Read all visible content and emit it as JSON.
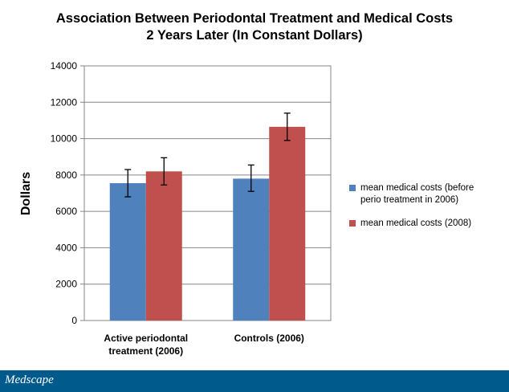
{
  "chart_data": {
    "type": "bar",
    "title": "Association Between Periodontal Treatment and Medical Costs",
    "subtitle": "2 Years Later (In Constant Dollars)",
    "ylabel": "Dollars",
    "xlabel": "",
    "ylim": [
      0,
      14000
    ],
    "yticks": [
      0,
      2000,
      4000,
      6000,
      8000,
      10000,
      12000,
      14000
    ],
    "grid": true,
    "legend_position": "right",
    "categories": [
      [
        "Active periodontal",
        "treatment (2006)"
      ],
      [
        "Controls (2006)"
      ]
    ],
    "series": [
      {
        "name": [
          "mean medical costs (before",
          "perio treatment in 2006)"
        ],
        "color": "#4f81bd",
        "values": [
          7550,
          7800
        ],
        "error": [
          [
            6800,
            8300
          ],
          [
            7100,
            8550
          ]
        ]
      },
      {
        "name": [
          "mean medical costs (2008)"
        ],
        "color": "#c0504d",
        "values": [
          8200,
          10650
        ],
        "error": [
          [
            7450,
            8950
          ],
          [
            9900,
            11400
          ]
        ]
      }
    ]
  },
  "footer": {
    "brand": "Medscape"
  }
}
